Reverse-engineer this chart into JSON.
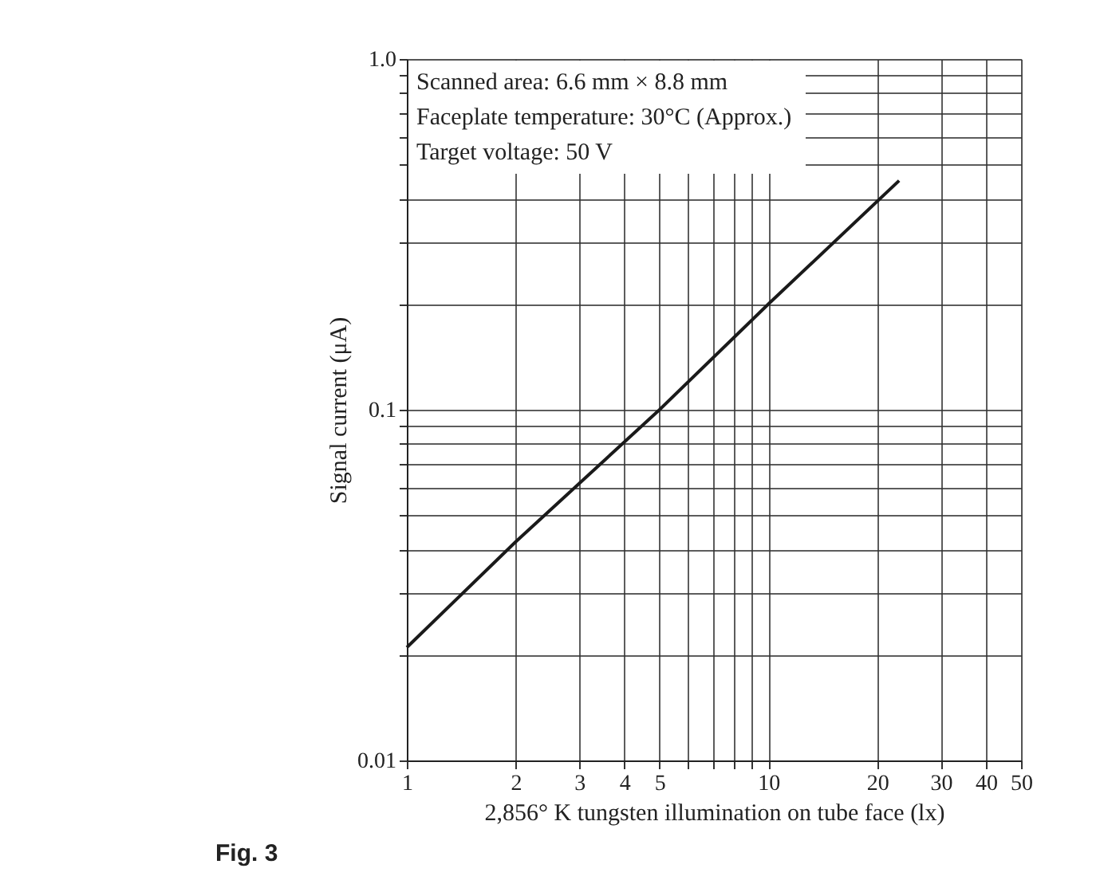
{
  "chart_data": {
    "type": "line",
    "xlabel": "2,856° K tungsten illumination on tube face (lx)",
    "ylabel": "Signal current (μA)",
    "log": "xy",
    "grid": true,
    "xlim": [
      1,
      50
    ],
    "ylim": [
      0.01,
      1.0
    ],
    "xticks": [
      1,
      2,
      3,
      4,
      5,
      {
        "value": 6,
        "label": null
      },
      {
        "value": 7,
        "label": null
      },
      {
        "value": 8,
        "label": null
      },
      {
        "value": 9,
        "label": null
      },
      10,
      20,
      30,
      40,
      50
    ],
    "yticks": [
      {
        "value": 0.01,
        "label": "0.01"
      },
      {
        "value": 0.02,
        "label": null
      },
      {
        "value": 0.03,
        "label": null
      },
      {
        "value": 0.04,
        "label": null
      },
      {
        "value": 0.05,
        "label": null
      },
      {
        "value": 0.06,
        "label": null
      },
      {
        "value": 0.07,
        "label": null
      },
      {
        "value": 0.08,
        "label": null
      },
      {
        "value": 0.09,
        "label": null
      },
      {
        "value": 0.1,
        "label": "0.1"
      },
      {
        "value": 0.2,
        "label": null
      },
      {
        "value": 0.3,
        "label": null
      },
      {
        "value": 0.4,
        "label": null
      },
      {
        "value": 0.5,
        "label": null
      },
      {
        "value": 0.6,
        "label": null
      },
      {
        "value": 0.7,
        "label": null
      },
      {
        "value": 0.8,
        "label": null
      },
      {
        "value": 0.9,
        "label": null
      },
      {
        "value": 1.0,
        "label": "1.0"
      }
    ],
    "series": [
      {
        "color": "#1a1a1a",
        "x": [
          1,
          2,
          5,
          10,
          23
        ],
        "values": [
          0.021,
          0.042,
          0.1,
          0.2,
          0.45
        ]
      }
    ],
    "annotations": [
      "Scanned area: 6.6 mm × 8.8 mm",
      "Faceplate temperature: 30°C (Approx.)",
      "Target voltage: 50 V",
      "Fig. 3"
    ]
  }
}
